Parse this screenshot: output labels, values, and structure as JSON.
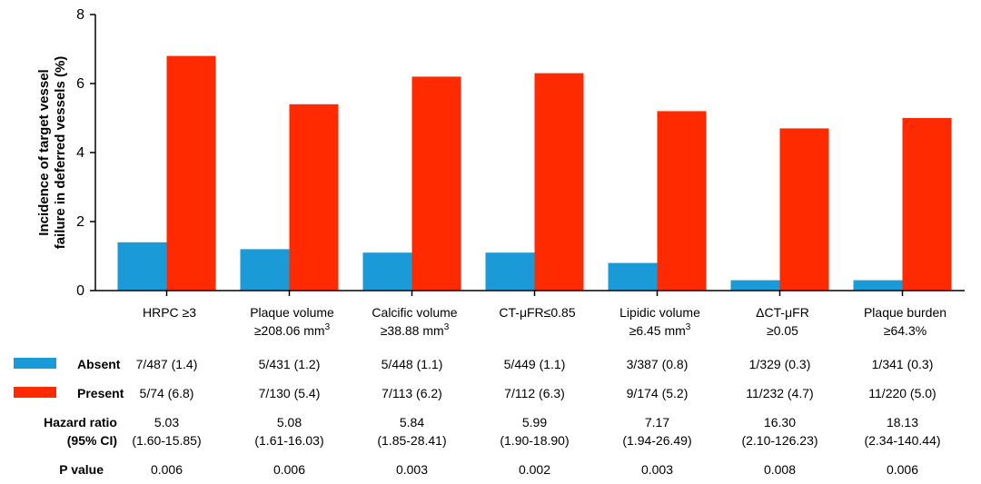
{
  "chart_data": {
    "type": "bar",
    "ylabel_line1": "Incidence of target vessel",
    "ylabel_line2": "failure in deferred vessels (%)",
    "ylim": [
      0,
      8
    ],
    "yticks": [
      "0",
      "2",
      "4",
      "6",
      "8"
    ],
    "grid": false,
    "legend": "left (in table rows)",
    "categories": [
      {
        "line1": "HRPC ≥3",
        "line2": "",
        "sup": ""
      },
      {
        "line1": "Plaque volume",
        "line2": "≥208.06 mm",
        "sup": "3"
      },
      {
        "line1": "Calcific volume",
        "line2": "≥38.88 mm",
        "sup": "3"
      },
      {
        "line1": "CT-μFR≤0.85",
        "line2": "",
        "sup": ""
      },
      {
        "line1": "Lipidic volume",
        "line2": "≥6.45 mm",
        "sup": "3"
      },
      {
        "line1": "ΔCT-μFR",
        "line2": "≥0.05",
        "sup": ""
      },
      {
        "line1": "Plaque burden",
        "line2": "≥64.3%",
        "sup": ""
      }
    ],
    "series": [
      {
        "name": "Absent",
        "color": "#1a9bd7",
        "values": [
          1.4,
          1.2,
          1.1,
          1.1,
          0.8,
          0.3,
          0.3
        ]
      },
      {
        "name": "Present",
        "color": "#ff2a00",
        "values": [
          6.8,
          5.4,
          6.2,
          6.3,
          5.2,
          4.7,
          5.0
        ]
      }
    ]
  },
  "table": {
    "absent_label": "Absent",
    "present_label": "Present",
    "hr_label_line1": "Hazard ratio",
    "hr_label_line2": "(95% CI)",
    "p_label": "P value",
    "absent_counts": [
      "7/487 (1.4)",
      "5/431 (1.2)",
      "5/448 (1.1)",
      "5/449 (1.1)",
      "3/387 (0.8)",
      "1/329 (0.3)",
      "1/341 (0.3)"
    ],
    "present_counts": [
      "5/74 (6.8)",
      "7/130 (5.4)",
      "7/113 (6.2)",
      "7/112 (6.3)",
      "9/174 (5.2)",
      "11/232 (4.7)",
      "11/220 (5.0)"
    ],
    "hazard_ratios": [
      "5.03",
      "5.08",
      "5.84",
      "5.99",
      "7.17",
      "16.30",
      "18.13"
    ],
    "ci": [
      "(1.60-15.85)",
      "(1.61-16.03)",
      "(1.85-28.41)",
      "(1.90-18.90)",
      "(1.94-26.49)",
      "(2.10-126.23)",
      "(2.34-140.44)"
    ],
    "p_values": [
      "0.006",
      "0.006",
      "0.003",
      "0.002",
      "0.003",
      "0.008",
      "0.006"
    ]
  }
}
